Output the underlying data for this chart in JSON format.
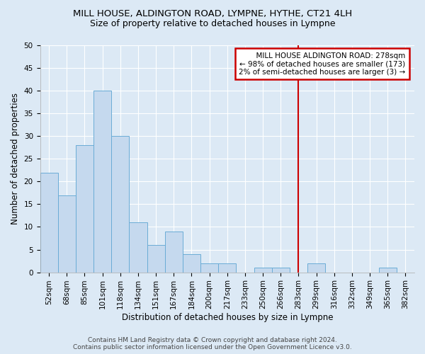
{
  "title": "MILL HOUSE, ALDINGTON ROAD, LYMPNE, HYTHE, CT21 4LH",
  "subtitle": "Size of property relative to detached houses in Lympne",
  "xlabel": "Distribution of detached houses by size in Lympne",
  "ylabel": "Number of detached properties",
  "categories": [
    "52sqm",
    "68sqm",
    "85sqm",
    "101sqm",
    "118sqm",
    "134sqm",
    "151sqm",
    "167sqm",
    "184sqm",
    "200sqm",
    "217sqm",
    "233sqm",
    "250sqm",
    "266sqm",
    "283sqm",
    "299sqm",
    "316sqm",
    "332sqm",
    "349sqm",
    "365sqm",
    "382sqm"
  ],
  "values": [
    22,
    17,
    28,
    40,
    30,
    11,
    6,
    9,
    4,
    2,
    2,
    0,
    1,
    1,
    0,
    2,
    0,
    0,
    0,
    1,
    0
  ],
  "bar_color": "#c5d9ee",
  "bar_edge_color": "#6aacd6",
  "vline_x_index": 14,
  "vline_color": "#cc0000",
  "annotation_text": "  MILL HOUSE ALDINGTON ROAD: 278sqm\n← 98% of detached houses are smaller (173)\n2% of semi-detached houses are larger (3) →",
  "annotation_box_color": "#ffffff",
  "annotation_box_edge_color": "#cc0000",
  "ylim": [
    0,
    50
  ],
  "yticks": [
    0,
    5,
    10,
    15,
    20,
    25,
    30,
    35,
    40,
    45,
    50
  ],
  "footer": "Contains HM Land Registry data © Crown copyright and database right 2024.\nContains public sector information licensed under the Open Government Licence v3.0.",
  "background_color": "#dce9f5",
  "plot_background_color": "#dce9f5",
  "grid_color": "#ffffff",
  "title_fontsize": 9.5,
  "subtitle_fontsize": 9,
  "axis_label_fontsize": 8.5,
  "tick_fontsize": 7.5,
  "footer_fontsize": 6.5
}
